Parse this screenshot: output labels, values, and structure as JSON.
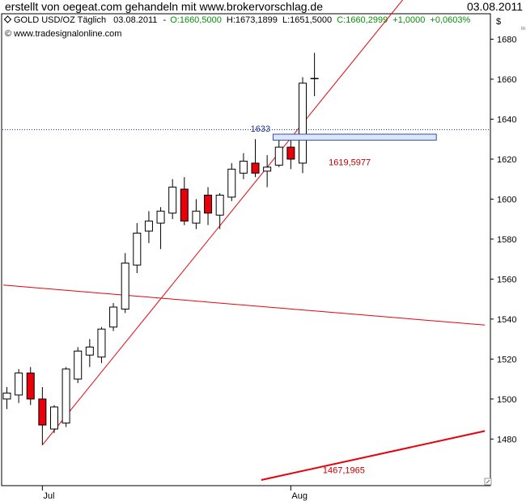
{
  "page": {
    "title": "erstellt von oegeat.com gehandeln mit www.brokervorschlag.de",
    "date": "03.08.2011"
  },
  "chart_data": {
    "type": "candlestick",
    "header": {
      "symbol": "GOLD USD/OZ Täglich",
      "date": "03.08.2011",
      "open": "O:1660,5000",
      "high": "H:1673,1899",
      "low": "L:1651,5000",
      "close": "C:1660,2999",
      "change": "+1,0000",
      "change_pct": "+0,0603%",
      "copyright": "© www.tradesignalonline.com"
    },
    "currency_label": "$",
    "ylim": [
      1460,
      1700
    ],
    "y_ticks": [
      1480,
      1500,
      1520,
      1540,
      1560,
      1580,
      1600,
      1620,
      1640,
      1660,
      1680
    ],
    "x_ticks": [
      {
        "label": "Jul",
        "index": 3
      },
      {
        "label": "Aug",
        "index": 24
      }
    ],
    "colors": {
      "up": "#ffffff",
      "down": "#e8000b",
      "wick": "#000000",
      "line": "#e8000b",
      "level_box": "#dbe6fb",
      "level_box_border": "#3a4fa0"
    },
    "candles": [
      {
        "o": 1500,
        "h": 1506,
        "l": 1495,
        "c": 1503
      },
      {
        "o": 1502,
        "h": 1515,
        "l": 1498,
        "c": 1513
      },
      {
        "o": 1513,
        "h": 1516,
        "l": 1497,
        "c": 1500
      },
      {
        "o": 1500,
        "h": 1506,
        "l": 1477,
        "c": 1487
      },
      {
        "o": 1485,
        "h": 1497,
        "l": 1483,
        "c": 1496
      },
      {
        "o": 1488,
        "h": 1516,
        "l": 1486,
        "c": 1515
      },
      {
        "o": 1510,
        "h": 1526,
        "l": 1508,
        "c": 1524
      },
      {
        "o": 1522,
        "h": 1530,
        "l": 1516,
        "c": 1526
      },
      {
        "o": 1521,
        "h": 1536,
        "l": 1518,
        "c": 1535
      },
      {
        "o": 1536,
        "h": 1548,
        "l": 1534,
        "c": 1546
      },
      {
        "o": 1545,
        "h": 1573,
        "l": 1543,
        "c": 1568
      },
      {
        "o": 1567,
        "h": 1588,
        "l": 1563,
        "c": 1583
      },
      {
        "o": 1584,
        "h": 1594,
        "l": 1578,
        "c": 1589
      },
      {
        "o": 1588,
        "h": 1596,
        "l": 1575,
        "c": 1594
      },
      {
        "o": 1593,
        "h": 1610,
        "l": 1590,
        "c": 1606
      },
      {
        "o": 1605,
        "h": 1611,
        "l": 1587,
        "c": 1589
      },
      {
        "o": 1588,
        "h": 1600,
        "l": 1585,
        "c": 1594
      },
      {
        "o": 1602,
        "h": 1606,
        "l": 1587,
        "c": 1593
      },
      {
        "o": 1592,
        "h": 1603,
        "l": 1585,
        "c": 1602
      },
      {
        "o": 1601,
        "h": 1618,
        "l": 1599,
        "c": 1615
      },
      {
        "o": 1613,
        "h": 1623,
        "l": 1610,
        "c": 1619
      },
      {
        "o": 1618,
        "h": 1630,
        "l": 1611,
        "c": 1613
      },
      {
        "o": 1614,
        "h": 1622,
        "l": 1606,
        "c": 1616
      },
      {
        "o": 1617,
        "h": 1632,
        "l": 1616,
        "c": 1626
      },
      {
        "o": 1626,
        "h": 1630,
        "l": 1615,
        "c": 1620
      },
      {
        "o": 1618,
        "h": 1661,
        "l": 1613,
        "c": 1658
      },
      {
        "o": 1660.5,
        "h": 1673.19,
        "l": 1651.5,
        "c": 1660.3
      }
    ],
    "lines": [
      {
        "name": "support-trend",
        "from": {
          "i": 3.0,
          "p": 1477
        },
        "to": {
          "i": 33.5,
          "p": 1700
        }
      },
      {
        "name": "falling-line",
        "from": {
          "i": -0.3,
          "p": 1557
        },
        "to": {
          "i": 40.4,
          "p": 1537
        }
      },
      {
        "name": "lower-trend",
        "from": {
          "i": 21.5,
          "p": 1459.5
        },
        "to": {
          "i": 40.4,
          "p": 1484
        },
        "bold": true
      }
    ],
    "level": {
      "value": 1633,
      "label": "1633",
      "box_from_i": 22.5,
      "box_to_i": 36.3,
      "box_low": 1629.5,
      "box_high": 1632.5
    },
    "annotations": [
      {
        "text": "1619,5977",
        "i": 27.2,
        "p": 1617
      },
      {
        "text": "1467,1965",
        "i": 26.7,
        "p": 1463
      }
    ]
  }
}
